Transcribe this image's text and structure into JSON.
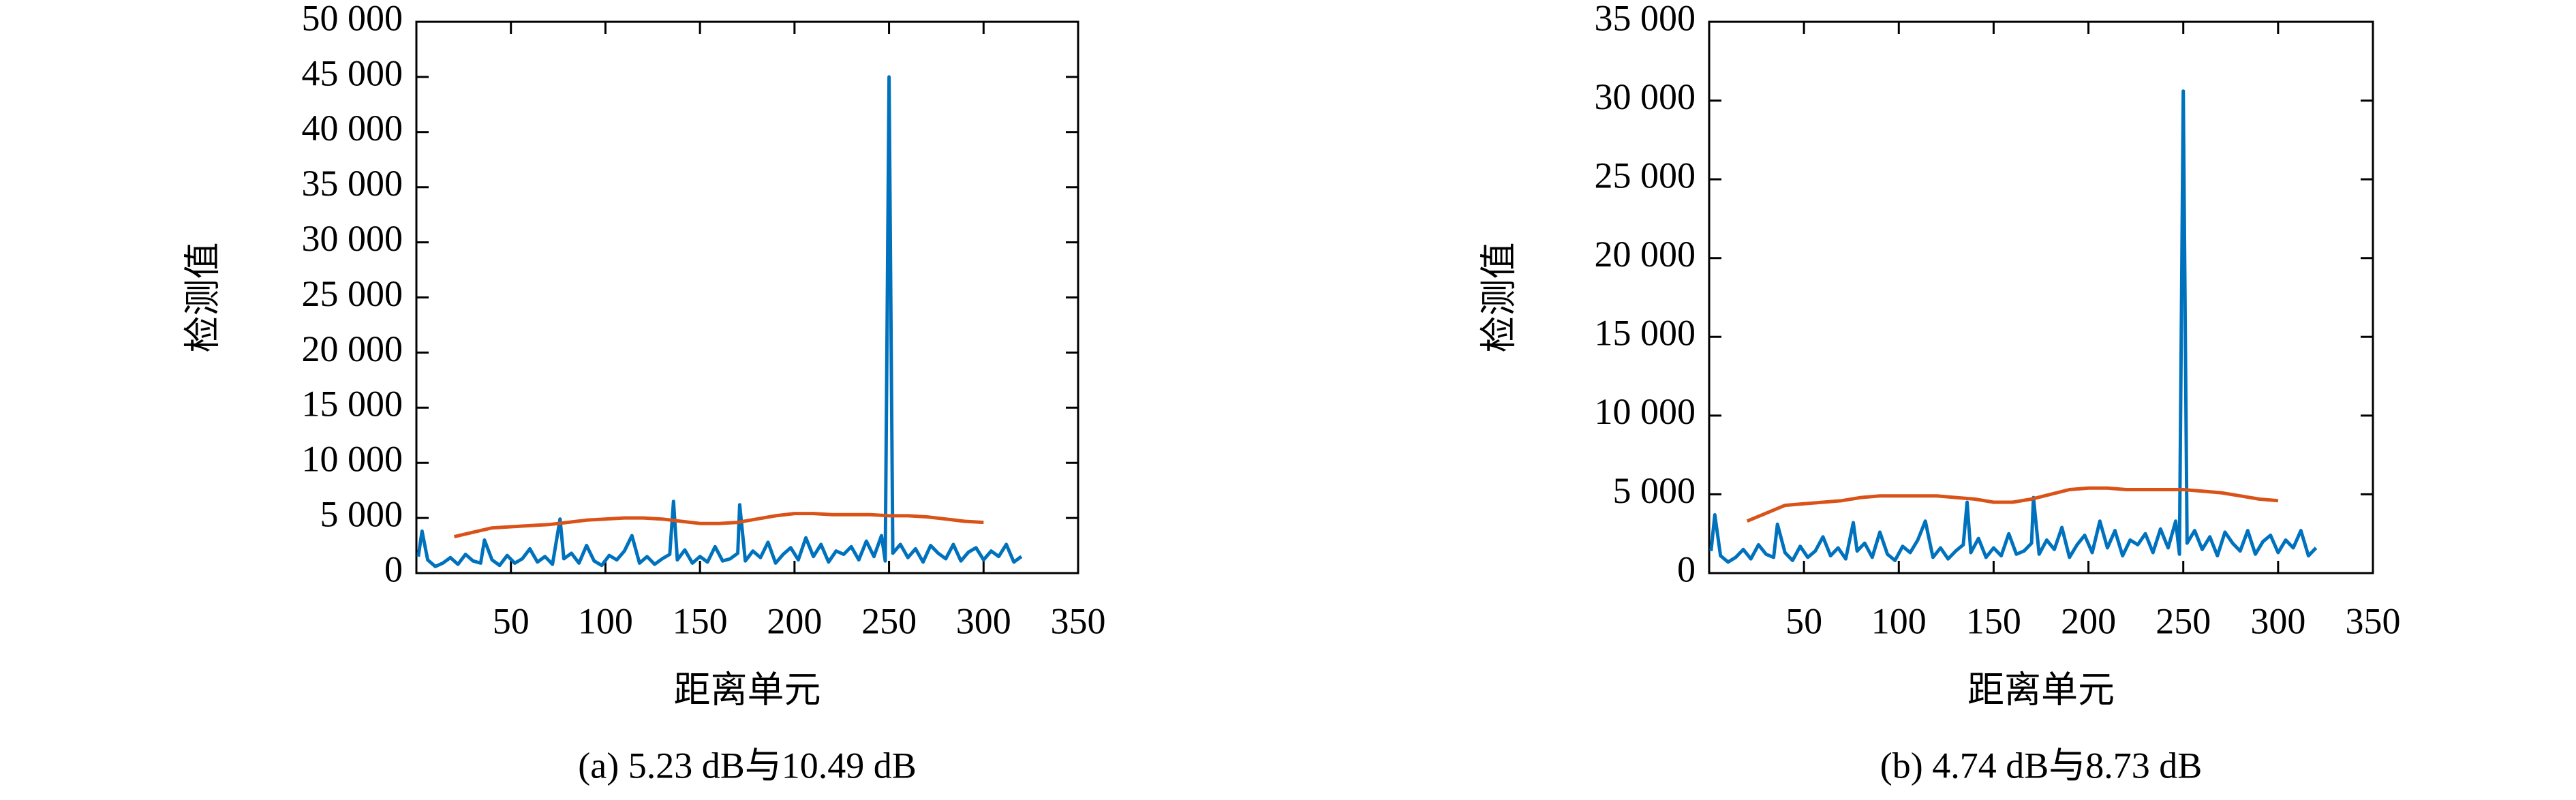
{
  "chart_data": [
    {
      "type": "line",
      "caption": "(a) 5.23 dB与10.49 dB",
      "xlabel": "距离单元",
      "ylabel": "检测值",
      "xlim": [
        0,
        350
      ],
      "xticks": [
        50,
        100,
        150,
        200,
        250,
        300,
        350
      ],
      "ylim": [
        0,
        50000
      ],
      "yticks": [
        0,
        {
          "value": 5000,
          "label": "5 000"
        },
        {
          "value": 10000,
          "label": "10 000"
        },
        {
          "value": 15000,
          "label": "15 000"
        },
        {
          "value": 20000,
          "label": "20 000"
        },
        {
          "value": 25000,
          "label": "25 000"
        },
        {
          "value": 30000,
          "label": "30 000"
        },
        {
          "value": 35000,
          "label": "35 000"
        },
        {
          "value": 40000,
          "label": "40 000"
        },
        {
          "value": 45000,
          "label": "45 000"
        },
        {
          "value": 50000,
          "label": "50 000"
        }
      ],
      "series": [
        {
          "color": "#0072bd",
          "x": [
            1,
            3,
            6,
            10,
            14,
            18,
            22,
            26,
            30,
            34,
            36,
            40,
            44,
            48,
            52,
            56,
            60,
            64,
            68,
            72,
            76,
            78,
            82,
            86,
            90,
            94,
            98,
            102,
            106,
            110,
            114,
            118,
            122,
            126,
            130,
            134,
            136,
            138,
            142,
            146,
            150,
            154,
            158,
            162,
            166,
            170,
            171,
            174,
            178,
            182,
            186,
            190,
            194,
            198,
            202,
            206,
            210,
            214,
            218,
            222,
            226,
            230,
            234,
            238,
            242,
            246,
            248,
            250,
            252,
            256,
            260,
            264,
            268,
            272,
            276,
            280,
            284,
            288,
            292,
            296,
            300,
            304,
            308,
            312,
            316,
            320
          ],
          "values": [
            1500,
            3800,
            1200,
            600,
            900,
            1400,
            800,
            1700,
            1100,
            900,
            3000,
            1200,
            700,
            1600,
            900,
            1300,
            2200,
            1000,
            1500,
            800,
            4900,
            1300,
            1800,
            900,
            2500,
            1100,
            700,
            1600,
            1200,
            2000,
            3400,
            900,
            1500,
            800,
            1300,
            1700,
            6500,
            1200,
            2100,
            900,
            1500,
            1000,
            2400,
            1100,
            1300,
            1800,
            6200,
            1100,
            2000,
            1400,
            2800,
            900,
            1700,
            2300,
            1200,
            3200,
            1500,
            2600,
            1000,
            2000,
            1700,
            2400,
            1200,
            2900,
            1500,
            3400,
            1100,
            45000,
            1800,
            2600,
            1400,
            2200,
            1000,
            2500,
            1800,
            1300,
            2600,
            1100,
            1900,
            2300,
            1200,
            2000,
            1500,
            2600,
            1000,
            1500
          ]
        },
        {
          "color": "#d95319",
          "x": [
            20,
            30,
            40,
            50,
            60,
            70,
            80,
            90,
            100,
            110,
            120,
            130,
            140,
            150,
            160,
            170,
            180,
            190,
            200,
            210,
            220,
            230,
            240,
            250,
            260,
            270,
            280,
            290,
            300
          ],
          "values": [
            3300,
            3700,
            4100,
            4200,
            4300,
            4400,
            4600,
            4800,
            4900,
            5000,
            5000,
            4900,
            4700,
            4500,
            4500,
            4600,
            4900,
            5200,
            5400,
            5400,
            5300,
            5300,
            5300,
            5200,
            5200,
            5100,
            4900,
            4700,
            4600
          ]
        }
      ]
    },
    {
      "type": "line",
      "caption": "(b) 4.74 dB与8.73 dB",
      "xlabel": "距离单元",
      "ylabel": "检测值",
      "xlim": [
        0,
        350
      ],
      "xticks": [
        50,
        100,
        150,
        200,
        250,
        300,
        350
      ],
      "ylim": [
        0,
        35000
      ],
      "yticks": [
        0,
        {
          "value": 5000,
          "label": "5 000"
        },
        {
          "value": 10000,
          "label": "10 000"
        },
        {
          "value": 15000,
          "label": "15 000"
        },
        {
          "value": 20000,
          "label": "20 000"
        },
        {
          "value": 25000,
          "label": "25 000"
        },
        {
          "value": 30000,
          "label": "30 000"
        },
        {
          "value": 35000,
          "label": "35 000"
        }
      ],
      "series": [
        {
          "color": "#0072bd",
          "x": [
            1,
            3,
            6,
            10,
            14,
            18,
            22,
            26,
            30,
            34,
            36,
            40,
            44,
            48,
            52,
            56,
            60,
            64,
            68,
            72,
            76,
            78,
            82,
            86,
            90,
            94,
            98,
            102,
            106,
            110,
            114,
            118,
            122,
            126,
            130,
            134,
            136,
            138,
            142,
            146,
            150,
            154,
            158,
            162,
            166,
            170,
            171,
            174,
            178,
            182,
            186,
            190,
            194,
            198,
            202,
            206,
            210,
            214,
            218,
            222,
            226,
            230,
            234,
            238,
            242,
            246,
            248,
            250,
            252,
            256,
            260,
            264,
            268,
            272,
            276,
            280,
            284,
            288,
            292,
            296,
            300,
            304,
            308,
            312,
            316,
            320
          ],
          "values": [
            1400,
            3700,
            1100,
            700,
            1000,
            1500,
            900,
            1800,
            1200,
            1000,
            3100,
            1300,
            800,
            1700,
            1000,
            1400,
            2300,
            1100,
            1600,
            900,
            3200,
            1400,
            1900,
            1000,
            2600,
            1200,
            800,
            1700,
            1300,
            2100,
            3300,
            1000,
            1600,
            900,
            1400,
            1800,
            4500,
            1300,
            2200,
            1000,
            1600,
            1100,
            2500,
            1200,
            1400,
            1900,
            4800,
            1200,
            2100,
            1500,
            2900,
            1000,
            1800,
            2400,
            1300,
            3300,
            1600,
            2700,
            1100,
            2100,
            1800,
            2500,
            1300,
            2800,
            1600,
            3300,
            1200,
            30600,
            1900,
            2700,
            1500,
            2300,
            1100,
            2600,
            1900,
            1400,
            2700,
            1200,
            2000,
            2400,
            1300,
            2100,
            1600,
            2700,
            1100,
            1600
          ]
        },
        {
          "color": "#d95319",
          "x": [
            20,
            30,
            40,
            50,
            60,
            70,
            80,
            90,
            100,
            110,
            120,
            130,
            140,
            150,
            160,
            170,
            180,
            190,
            200,
            210,
            220,
            230,
            240,
            250,
            260,
            270,
            280,
            290,
            300
          ],
          "values": [
            3300,
            3800,
            4300,
            4400,
            4500,
            4600,
            4800,
            4900,
            4900,
            4900,
            4900,
            4800,
            4700,
            4500,
            4500,
            4700,
            5000,
            5300,
            5400,
            5400,
            5300,
            5300,
            5300,
            5300,
            5200,
            5100,
            4900,
            4700,
            4600
          ]
        }
      ]
    }
  ]
}
